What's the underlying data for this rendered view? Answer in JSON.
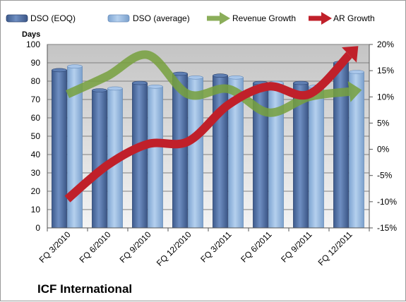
{
  "chart_data": {
    "type": "bar",
    "footer_title": "ICF International",
    "y_left_label": "Days",
    "categories": [
      "FQ 3/2010",
      "FQ 6/2010",
      "FQ 9/2010",
      "FQ 12/2010",
      "FQ 3/2011",
      "FQ 6/2011",
      "FQ 9/2011",
      "FQ 12/2011"
    ],
    "ylim_left": [
      0,
      100
    ],
    "yticks_left": [
      0,
      10,
      20,
      30,
      40,
      50,
      60,
      70,
      80,
      90,
      100
    ],
    "ylim_right": [
      -15,
      20
    ],
    "yticks_right": [
      -15,
      -10,
      -5,
      0,
      5,
      10,
      15,
      20
    ],
    "yticks_right_labels": [
      "-15%",
      "-10%",
      "-5%",
      "0%",
      "5%",
      "10%",
      "15%",
      "20%"
    ],
    "grid": "horizontal",
    "legend_position": "top",
    "bar_series": [
      {
        "name": "DSO (EOQ)",
        "color": "#4f6ea0",
        "values": [
          86,
          75,
          79,
          84,
          83,
          79,
          79,
          90
        ]
      },
      {
        "name": "DSO (average)",
        "color": "#8fb4de",
        "values": [
          88,
          76,
          77,
          82,
          82,
          79,
          77,
          85
        ]
      }
    ],
    "line_series": [
      {
        "name": "Revenue Growth",
        "color": "#77a13e",
        "axis": "right",
        "values": [
          10.5,
          14,
          18,
          10.5,
          11.5,
          7,
          10,
          11
        ]
      },
      {
        "name": "AR Growth",
        "color": "#c0202a",
        "axis": "right",
        "values": [
          -9.5,
          -3,
          1,
          1.5,
          8.5,
          12,
          10.5,
          18
        ]
      }
    ]
  }
}
